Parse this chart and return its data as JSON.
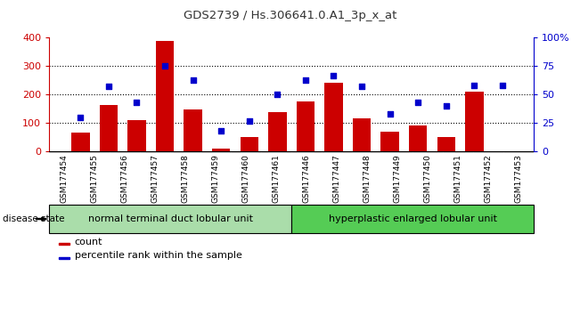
{
  "title": "GDS2739 / Hs.306641.0.A1_3p_x_at",
  "samples": [
    "GSM177454",
    "GSM177455",
    "GSM177456",
    "GSM177457",
    "GSM177458",
    "GSM177459",
    "GSM177460",
    "GSM177461",
    "GSM177446",
    "GSM177447",
    "GSM177448",
    "GSM177449",
    "GSM177450",
    "GSM177451",
    "GSM177452",
    "GSM177453"
  ],
  "counts": [
    65,
    162,
    110,
    390,
    148,
    10,
    50,
    137,
    175,
    240,
    115,
    68,
    90,
    50,
    210,
    0
  ],
  "percentiles": [
    30,
    57,
    43,
    75,
    63,
    18,
    27,
    50,
    63,
    67,
    57,
    33,
    43,
    40,
    58,
    58
  ],
  "bar_color": "#cc0000",
  "dot_color": "#0000cc",
  "group1_label": "normal terminal duct lobular unit",
  "group2_label": "hyperplastic enlarged lobular unit",
  "group1_color": "#aaddaa",
  "group2_color": "#55cc55",
  "disease_state_label": "disease state",
  "legend_count": "count",
  "legend_percentile": "percentile rank within the sample",
  "ylim_left": [
    0,
    400
  ],
  "ylim_right": [
    0,
    100
  ],
  "yticks_left": [
    0,
    100,
    200,
    300,
    400
  ],
  "yticks_right": [
    0,
    25,
    50,
    75,
    100
  ],
  "plot_bg": "#ffffff",
  "xtick_bg": "#cccccc"
}
